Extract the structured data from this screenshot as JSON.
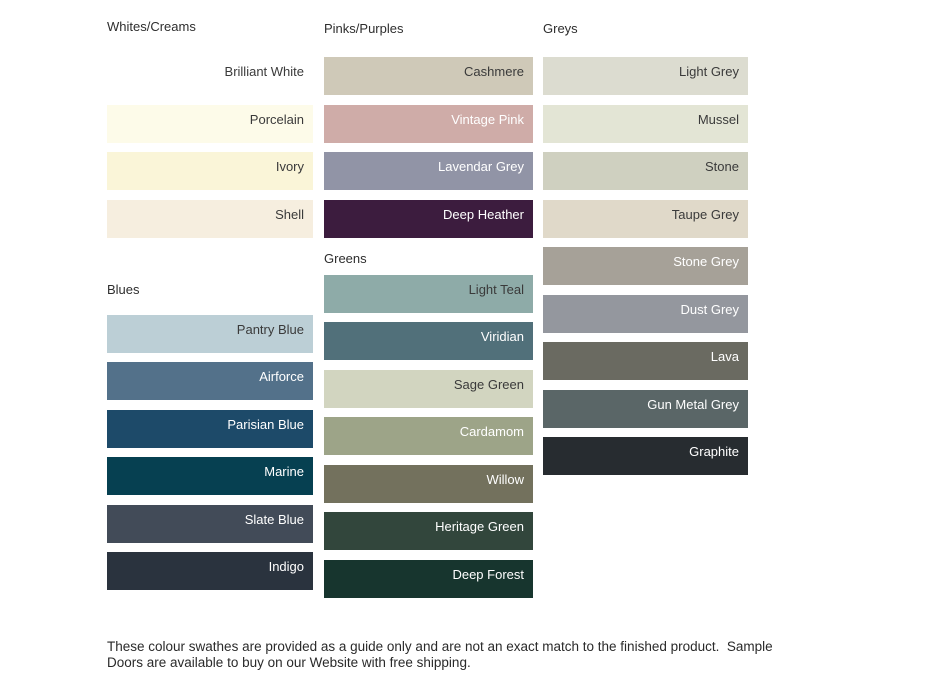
{
  "page": {
    "background": "#ffffff",
    "dark_label_color": "#3a3a3a",
    "light_label_color": "#ffffff"
  },
  "footer": {
    "line1": "These colour swathes are provided as a guide only and are not an exact match to the finished product.  Sample",
    "line2": "Doors are available to buy on our Website with free shipping."
  },
  "columns": [
    {
      "sections": [
        {
          "header": "Whites/Creams",
          "swatches": [
            {
              "name": "Brilliant White",
              "color": "#ffffff",
              "label_color": "#3a3a3a"
            },
            {
              "name": "Porcelain",
              "color": "#fdfbe9",
              "label_color": "#3a3a3a"
            },
            {
              "name": "Ivory",
              "color": "#faf5d8",
              "label_color": "#3a3a3a"
            },
            {
              "name": "Shell",
              "color": "#f6eedf",
              "label_color": "#3a3a3a"
            }
          ]
        },
        {
          "header": "Blues",
          "swatches": [
            {
              "name": "Pantry Blue",
              "color": "#bccfd6",
              "label_color": "#3a3a3a"
            },
            {
              "name": "Airforce",
              "color": "#53718a",
              "label_color": "#ffffff"
            },
            {
              "name": "Parisian Blue",
              "color": "#1d4a69",
              "label_color": "#ffffff"
            },
            {
              "name": "Marine",
              "color": "#064051",
              "label_color": "#ffffff"
            },
            {
              "name": "Slate Blue",
              "color": "#424b58",
              "label_color": "#ffffff"
            },
            {
              "name": "Indigo",
              "color": "#2a333e",
              "label_color": "#ffffff"
            }
          ]
        }
      ]
    },
    {
      "sections": [
        {
          "header": "Pinks/Purples",
          "swatches": [
            {
              "name": "Cashmere",
              "color": "#cfc9b8",
              "label_color": "#3a3a3a"
            },
            {
              "name": "Vintage Pink",
              "color": "#cfaca8",
              "label_color": "#ffffff"
            },
            {
              "name": "Lavendar Grey",
              "color": "#9194a6",
              "label_color": "#ffffff"
            },
            {
              "name": "Deep Heather",
              "color": "#3c1c3e",
              "label_color": "#ffffff"
            }
          ]
        },
        {
          "header": "Greens",
          "swatches": [
            {
              "name": "Light Teal",
              "color": "#8eaba8",
              "label_color": "#3a3a3a"
            },
            {
              "name": "Viridian",
              "color": "#51707a",
              "label_color": "#ffffff"
            },
            {
              "name": "Sage Green",
              "color": "#d2d5c0",
              "label_color": "#3a3a3a"
            },
            {
              "name": "Cardamom",
              "color": "#9da488",
              "label_color": "#ffffff"
            },
            {
              "name": "Willow",
              "color": "#73715d",
              "label_color": "#ffffff"
            },
            {
              "name": "Heritage Green",
              "color": "#32463c",
              "label_color": "#ffffff"
            },
            {
              "name": "Deep Forest",
              "color": "#17352e",
              "label_color": "#ffffff"
            }
          ]
        }
      ]
    },
    {
      "sections": [
        {
          "header": "Greys",
          "swatches": [
            {
              "name": "Light Grey",
              "color": "#dcdcd0",
              "label_color": "#3a3a3a"
            },
            {
              "name": "Mussel",
              "color": "#e3e5d5",
              "label_color": "#3a3a3a"
            },
            {
              "name": "Stone",
              "color": "#cfd0c0",
              "label_color": "#3a3a3a"
            },
            {
              "name": "Taupe Grey",
              "color": "#e0d9c9",
              "label_color": "#3a3a3a"
            },
            {
              "name": "Stone Grey",
              "color": "#a6a198",
              "label_color": "#ffffff"
            },
            {
              "name": "Dust Grey",
              "color": "#94979e",
              "label_color": "#ffffff"
            },
            {
              "name": "Lava",
              "color": "#6a6a61",
              "label_color": "#ffffff"
            },
            {
              "name": "Gun Metal Grey",
              "color": "#5a6667",
              "label_color": "#ffffff"
            },
            {
              "name": "Graphite",
              "color": "#272c30",
              "label_color": "#ffffff"
            }
          ]
        }
      ]
    }
  ]
}
